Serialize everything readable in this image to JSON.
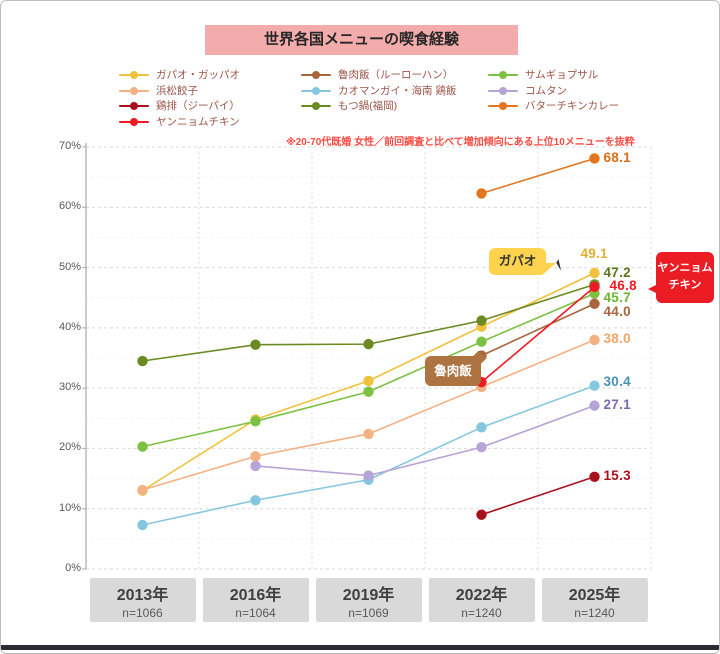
{
  "title": "世界各国メニューの喫食経験",
  "note": "※20-70代既婚 女性／前回調査と比べて増加傾向にある上位10メニューを抜粋",
  "chart_data": {
    "type": "line",
    "x_categories": [
      "2013年",
      "2016年",
      "2019年",
      "2022年",
      "2025年"
    ],
    "x_sample_sizes": [
      "n=1066",
      "n=1064",
      "n=1069",
      "n=1240",
      "n=1240"
    ],
    "y_axis": {
      "min": 0,
      "max": 70,
      "step": 10,
      "tick_labels": [
        "0%",
        "10%",
        "20%",
        "30%",
        "40%",
        "50%",
        "60%",
        "70%"
      ]
    },
    "grid": true,
    "legend_position": "top",
    "series": [
      {
        "id": "gabao",
        "name": "ガパオ・ガッパオ",
        "color": "#EFC13C",
        "label_color": "#E3AF2E",
        "values": [
          13.0,
          24.8,
          31.2,
          40.2,
          49.1
        ],
        "end_label": "49.1",
        "label_dx": -23,
        "label_dy": -18
      },
      {
        "id": "hamamatsu",
        "name": "浜松餃子",
        "color": "#F4B183",
        "label_color": "#F0A express569",
        "values": [
          13.1,
          18.7,
          22.4,
          30.2,
          38.0
        ],
        "end_label": "38.0"
      },
      {
        "id": "jipai",
        "name": "鶏排（ジーパイ）",
        "color": "#A8111C",
        "values": [
          null,
          null,
          null,
          9.0,
          15.3
        ],
        "end_label": "15.3"
      },
      {
        "id": "yangnyeom",
        "name": "ヤンニョムチキン",
        "color": "#EC1C24",
        "values": [
          null,
          null,
          null,
          31.0,
          46.8
        ],
        "end_label": "46.8",
        "label_dx": 6
      },
      {
        "id": "rurohan",
        "name": "魯肉飯（ルーローハン）",
        "color": "#A9653C",
        "values": [
          null,
          null,
          null,
          35.4,
          44.0
        ],
        "end_label": "44.0",
        "label_dy": 9
      },
      {
        "id": "kaomangai",
        "name": "カオマンガイ・海南 鶏飯",
        "color": "#85C7DF",
        "label_color": "#4592B4",
        "values": [
          7.3,
          11.4,
          14.8,
          23.5,
          30.4
        ],
        "end_label": "30.4",
        "label_dy": -3
      },
      {
        "id": "motsunabe",
        "name": "もつ鍋(福岡)",
        "color": "#6C8A22",
        "label_color": "#5D7519",
        "values": [
          34.5,
          37.2,
          37.3,
          41.2,
          47.2
        ],
        "end_label": "47.2",
        "label_dy": -10
      },
      {
        "id": "samgyeopsal",
        "name": "サムギョプサル",
        "color": "#7CC142",
        "label_color": "#6DB52F",
        "values": [
          20.3,
          24.5,
          29.4,
          37.7,
          45.7
        ],
        "end_label": "45.7",
        "label_dy": 6
      },
      {
        "id": "komutan",
        "name": "コムタン",
        "color": "#B5A4D5",
        "label_color": "#7B68B0",
        "values": [
          null,
          17.1,
          15.5,
          20.2,
          27.1
        ],
        "end_label": "27.1"
      },
      {
        "id": "butterchicken",
        "name": "バターチキンカレー",
        "color": "#E2751D",
        "label_color": "#D96F15",
        "values": [
          null,
          null,
          null,
          62.3,
          68.1
        ],
        "end_label": "68.1",
        "label_dy": 1
      }
    ],
    "draw_order": [
      "gabao",
      "kaomangai",
      "komutan",
      "hamamatsu",
      "samgyeopsal",
      "motsunabe",
      "rurohan",
      "butterchicken",
      "jipai",
      "yangnyeom"
    ]
  },
  "legend": {
    "columns": [
      [
        "gabao",
        "hamamatsu",
        "jipai",
        "yangnyeom"
      ],
      [
        "rurohan",
        "kaomangai",
        "motsunabe"
      ],
      [
        "samgyeopsal",
        "komutan",
        "butterchicken"
      ]
    ]
  },
  "callouts": {
    "gabao": {
      "text": "ガパオ",
      "bg": "#FFD34D",
      "fg": "#333333"
    },
    "rurohan": {
      "text": "魯肉飯",
      "bg": "#AD7442",
      "fg": "#FFFFFF"
    },
    "yangnyeom": {
      "line1": "ヤンニョム",
      "line2": "チキン",
      "bg": "#EC1C24",
      "fg": "#FFFFFF"
    }
  },
  "colors": {
    "banner_bg": "#F3ABAB",
    "banner_text": "#262626",
    "note": "#FB4A42",
    "legend_text": "#9C544A",
    "axis_label": "#595959",
    "xbox_bg": "#D9D9D9",
    "xbox_year": "#3F3F3F",
    "xbox_n": "#595959"
  }
}
